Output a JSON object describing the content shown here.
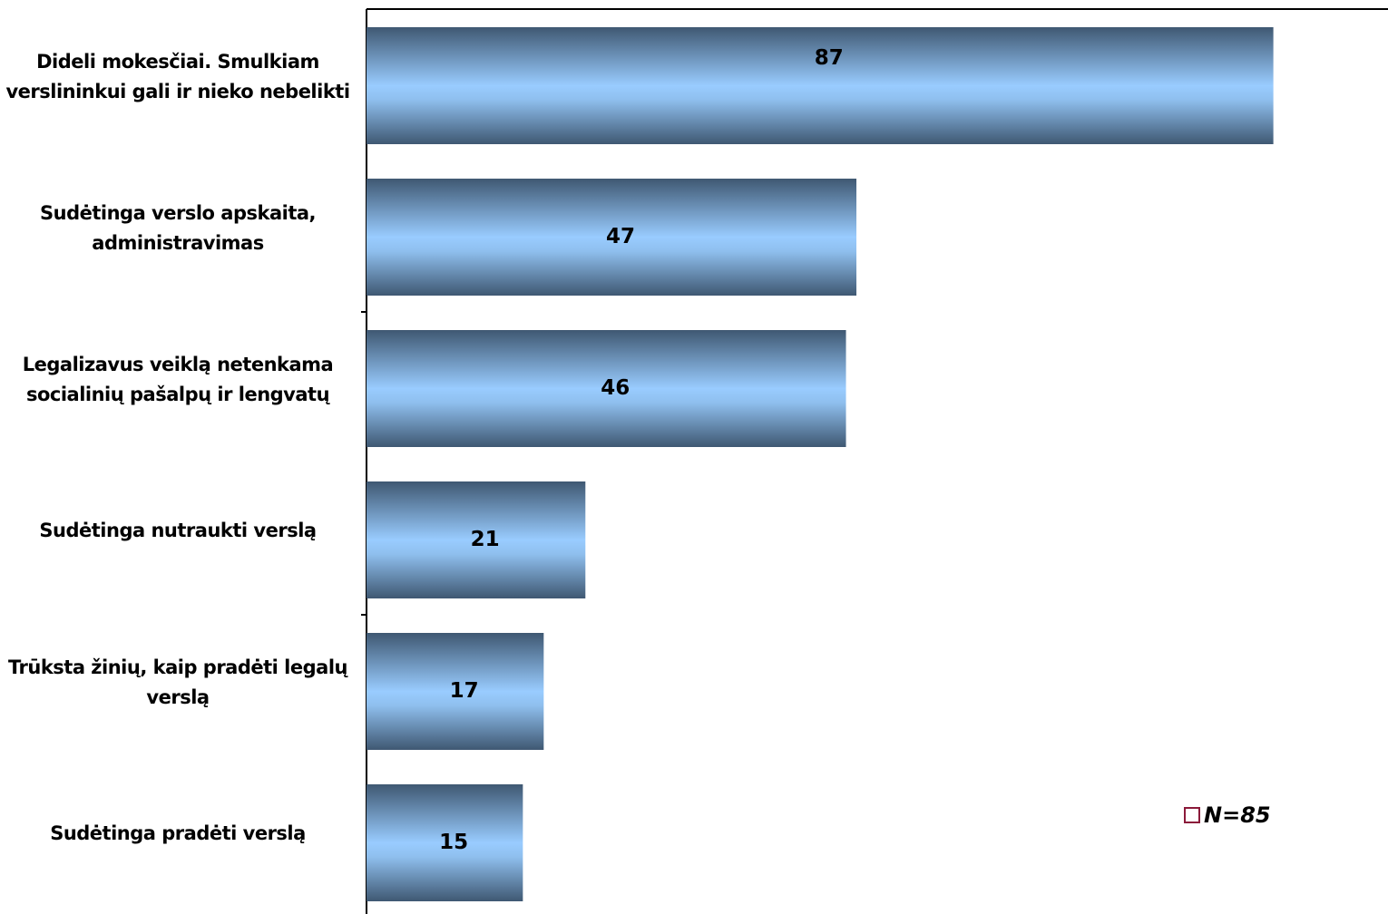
{
  "chart_data": {
    "type": "hbar",
    "categories": [
      "Dideli mokesčiai. Smulkiam verslininkui gali ir nieko nebelikti",
      "Sudėtinga verslo apskaita, administravimas",
      "Legalizavus veiklą netenkama socialinių pašalpų ir lengvatų",
      "Sudėtinga nutraukti verslą",
      "Trūksta žinių, kaip pradėti legalų verslą",
      "Sudėtinga pradėti verslą"
    ],
    "series": [
      {
        "name": "N=85",
        "color": "#99ccff",
        "values": [
          87,
          47,
          46,
          21,
          17,
          15
        ]
      }
    ],
    "xlim": [
      0,
      98
    ],
    "legend": "bottom-right"
  }
}
